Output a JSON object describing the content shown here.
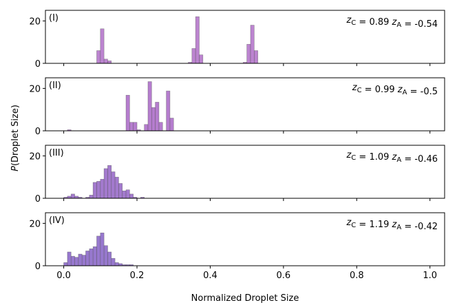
{
  "chart_data": {
    "type": "histogram",
    "xlabel": "Normalized Droplet Size",
    "ylabel": "P(Droplet Size)",
    "xlim": [
      -0.05,
      1.04
    ],
    "xticks": [
      0.0,
      0.2,
      0.4,
      0.6,
      0.8,
      1.0
    ],
    "xtick_labels": [
      "0.0",
      "0.2",
      "0.4",
      "0.6",
      "0.8",
      "1.0"
    ],
    "yticks": [
      0,
      20
    ],
    "ytick_labels": [
      "0",
      "20"
    ],
    "ylim": [
      0,
      25
    ],
    "bin_width": 0.01,
    "panels": [
      {
        "label": "(I)",
        "annotation": {
          "zC": "0.89",
          "zA": "-0.54"
        },
        "color": "#b06ec8",
        "bins": [
          [
            0.09,
            6
          ],
          [
            0.1,
            16.3
          ],
          [
            0.11,
            2
          ],
          [
            0.12,
            1.2
          ],
          [
            0.34,
            0.5
          ],
          [
            0.35,
            7
          ],
          [
            0.36,
            22
          ],
          [
            0.37,
            4
          ],
          [
            0.49,
            0.5
          ],
          [
            0.5,
            9
          ],
          [
            0.51,
            18
          ],
          [
            0.52,
            6
          ]
        ]
      },
      {
        "label": "(II)",
        "annotation": {
          "zC": "0.99",
          "zA": "-0.5"
        },
        "color": "#a866c6",
        "bins": [
          [
            0.01,
            0.5
          ],
          [
            0.17,
            16.8
          ],
          [
            0.18,
            4
          ],
          [
            0.19,
            4
          ],
          [
            0.2,
            0.5
          ],
          [
            0.22,
            3
          ],
          [
            0.23,
            23.2
          ],
          [
            0.24,
            11
          ],
          [
            0.25,
            13.5
          ],
          [
            0.26,
            4
          ],
          [
            0.28,
            18.8
          ],
          [
            0.29,
            6
          ]
        ]
      },
      {
        "label": "(III)",
        "annotation": {
          "zC": "1.09",
          "zA": "-0.46"
        },
        "color": "#9363c6",
        "bins": [
          [
            0.0,
            0.5
          ],
          [
            0.01,
            1
          ],
          [
            0.02,
            2
          ],
          [
            0.03,
            1
          ],
          [
            0.04,
            0.5
          ],
          [
            0.06,
            0.5
          ],
          [
            0.07,
            1.5
          ],
          [
            0.08,
            7.5
          ],
          [
            0.09,
            8
          ],
          [
            0.1,
            9
          ],
          [
            0.11,
            14
          ],
          [
            0.12,
            15.5
          ],
          [
            0.13,
            12.5
          ],
          [
            0.14,
            10
          ],
          [
            0.15,
            7
          ],
          [
            0.16,
            3.5
          ],
          [
            0.17,
            4
          ],
          [
            0.18,
            2
          ],
          [
            0.19,
            0.5
          ],
          [
            0.21,
            0.5
          ]
        ]
      },
      {
        "label": "(IV)",
        "annotation": {
          "zC": "1.19",
          "zA": "-0.42"
        },
        "color": "#8560c6",
        "bins": [
          [
            0.0,
            1.5
          ],
          [
            0.01,
            6.5
          ],
          [
            0.02,
            4.5
          ],
          [
            0.03,
            4
          ],
          [
            0.04,
            5.5
          ],
          [
            0.05,
            5
          ],
          [
            0.06,
            7
          ],
          [
            0.07,
            8
          ],
          [
            0.08,
            9
          ],
          [
            0.09,
            14
          ],
          [
            0.1,
            15.5
          ],
          [
            0.11,
            9.5
          ],
          [
            0.12,
            6.5
          ],
          [
            0.13,
            3.5
          ],
          [
            0.14,
            1.5
          ],
          [
            0.15,
            1
          ],
          [
            0.16,
            0.5
          ],
          [
            0.17,
            0.5
          ],
          [
            0.18,
            0.5
          ]
        ]
      }
    ]
  }
}
